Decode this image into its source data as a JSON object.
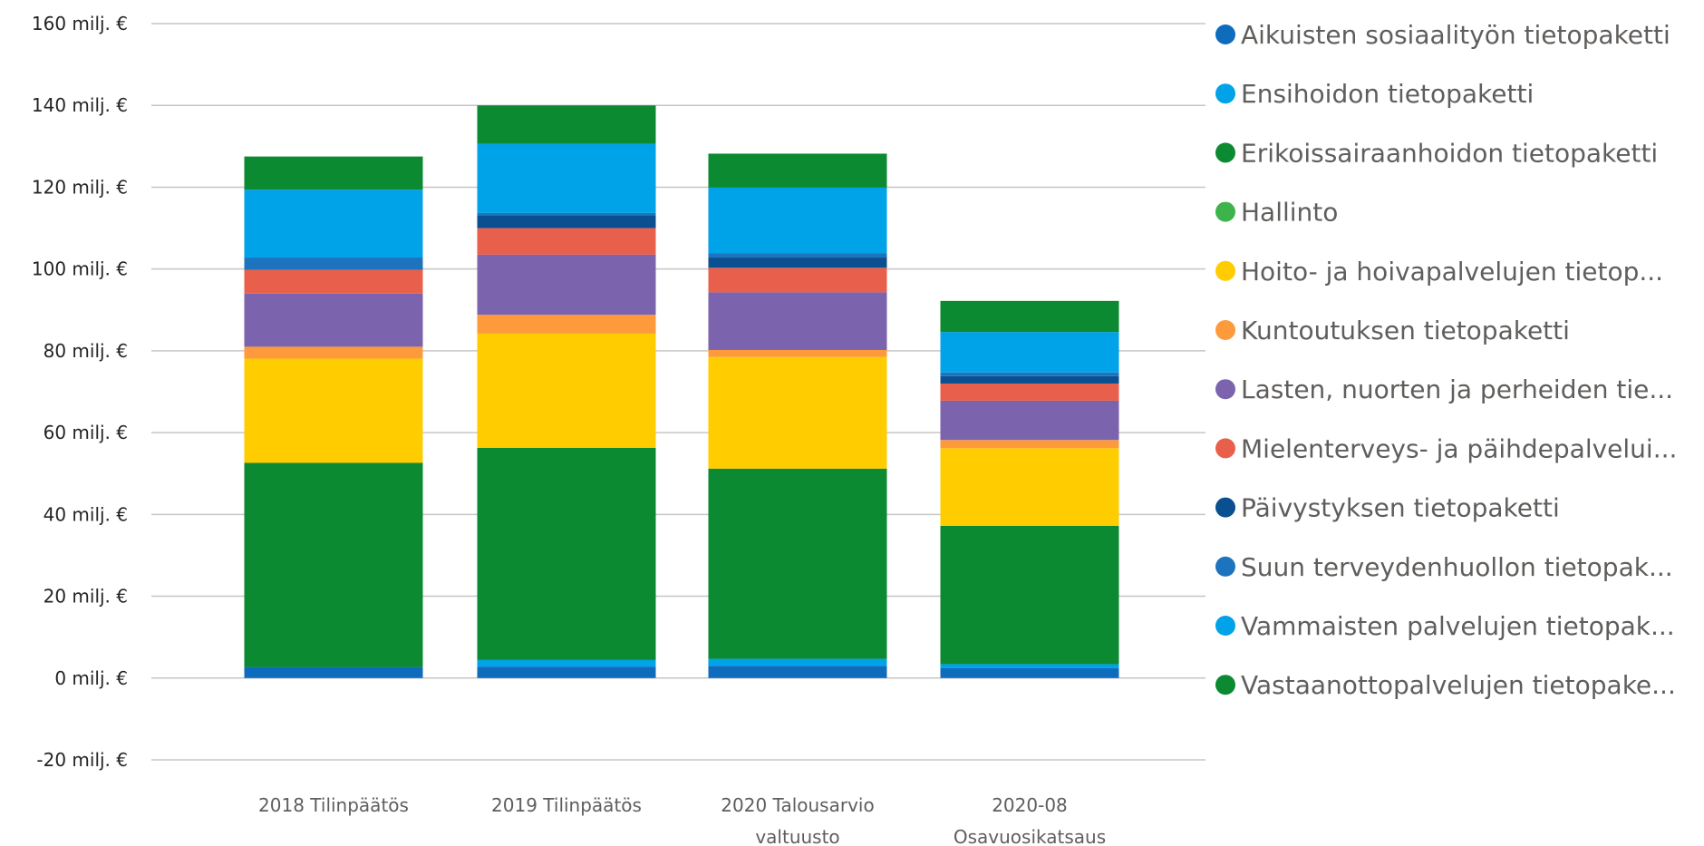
{
  "chart_data": {
    "type": "bar",
    "stacked": true,
    "categories": [
      [
        "2018 Tilinpäätös"
      ],
      [
        "2019 Tilinpäätös"
      ],
      [
        "2020 Talousarvio",
        "valtuusto"
      ],
      [
        "2020-08",
        "Osavuosikatsaus"
      ]
    ],
    "y_ticks": [
      {
        "value": 160,
        "label": "160 milj. €"
      },
      {
        "value": 140,
        "label": "140 milj. €"
      },
      {
        "value": 120,
        "label": "120 milj. €"
      },
      {
        "value": 100,
        "label": "100 milj. €"
      },
      {
        "value": 80,
        "label": "80 milj. €"
      },
      {
        "value": 60,
        "label": "60 milj. €"
      },
      {
        "value": 40,
        "label": "40 milj. €"
      },
      {
        "value": 20,
        "label": "20 milj. €"
      },
      {
        "value": 0,
        "label": "0 milj. €"
      },
      {
        "value": -20,
        "label": "-20 milj. €"
      }
    ],
    "ylim": [
      -20,
      160
    ],
    "grid": true,
    "legend_position": "right",
    "series": [
      {
        "name": "Aikuisten sosiaalityön tietopaketti",
        "color": "#0f6cbd",
        "values": [
          2.7,
          2.8,
          3.0,
          2.4
        ]
      },
      {
        "name": "Ensihoidon tietopaketti",
        "color": "#00a2e8",
        "values": [
          0.0,
          1.6,
          1.7,
          1.0
        ]
      },
      {
        "name": "Erikoissairaanhoidon tietopaketti",
        "color": "#0b8a32",
        "values": [
          49.9,
          51.9,
          46.5,
          33.8
        ]
      },
      {
        "name": "Hallinto",
        "color": "#3cb44b",
        "values": [
          0.0,
          0.0,
          0.0,
          0.0
        ]
      },
      {
        "name": "Hoito- ja hoivapalvelujen tietop...",
        "color": "#ffcc00",
        "values": [
          25.5,
          27.9,
          27.3,
          19.0
        ]
      },
      {
        "name": "Kuntoutuksen tietopaketti",
        "color": "#fd9a3c",
        "values": [
          2.9,
          4.6,
          1.7,
          2.0
        ]
      },
      {
        "name": "Lasten, nuorten ja perheiden tie...",
        "color": "#7b63ad",
        "values": [
          13.0,
          14.7,
          14.1,
          9.6
        ]
      },
      {
        "name": "Mielenterveys- ja päihdepalvelui...",
        "color": "#e8604c",
        "values": [
          5.8,
          6.5,
          6.0,
          4.2
        ]
      },
      {
        "name": "Päivystyksen tietopaketti",
        "color": "#0a4f8f",
        "values": [
          0.0,
          3.1,
          2.5,
          1.8
        ]
      },
      {
        "name": "Suun terveydenhuollon tietopak...",
        "color": "#1e73be",
        "values": [
          3.0,
          0.6,
          1.0,
          0.9
        ]
      },
      {
        "name": "Vammaisten palvelujen tietopak...",
        "color": "#00a2e8",
        "values": [
          16.6,
          16.9,
          16.1,
          9.9
        ]
      },
      {
        "name": "Vastaanottopalvelujen tietopake...",
        "color": "#0b8a32",
        "values": [
          8.1,
          9.4,
          8.3,
          7.6
        ]
      }
    ]
  }
}
